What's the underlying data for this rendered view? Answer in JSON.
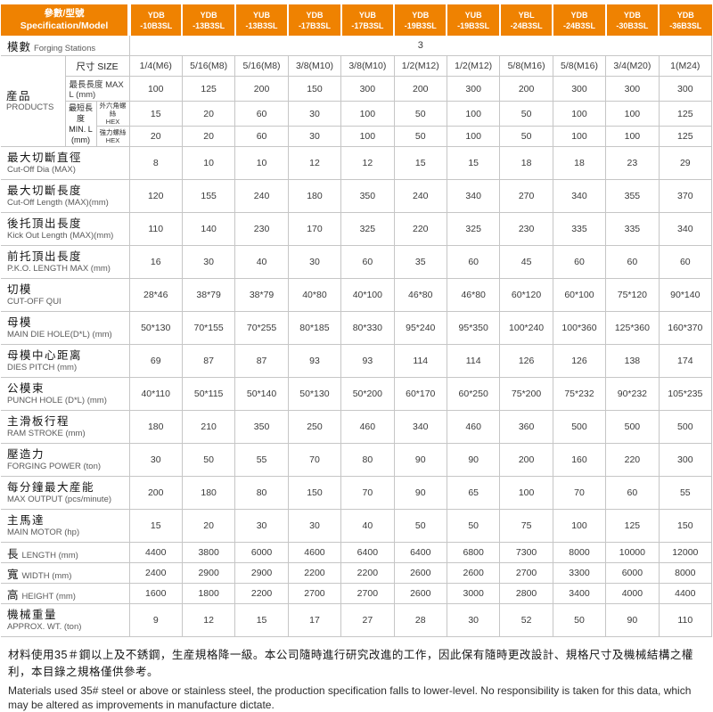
{
  "colors": {
    "accent": "#ef8201",
    "grid": "#c6c6c6",
    "header_text": "#ffffff"
  },
  "header": {
    "spec_zh": "參數/型號",
    "spec_en": "Specification/Model",
    "models": [
      {
        "line1": "YDB",
        "line2": "-10B3SL"
      },
      {
        "line1": "YDB",
        "line2": "-13B3SL"
      },
      {
        "line1": "YUB",
        "line2": "-13B3SL"
      },
      {
        "line1": "YDB",
        "line2": "-17B3SL"
      },
      {
        "line1": "YUB",
        "line2": "-17B3SL"
      },
      {
        "line1": "YDB",
        "line2": "-19B3SL"
      },
      {
        "line1": "YUB",
        "line2": "-19B3SL"
      },
      {
        "line1": "YBL",
        "line2": "-24B3SL"
      },
      {
        "line1": "YDB",
        "line2": "-24B3SL"
      },
      {
        "line1": "YDB",
        "line2": "-30B3SL"
      },
      {
        "line1": "YDB",
        "line2": "-36B3SL"
      }
    ]
  },
  "stations": {
    "zh": "模數",
    "en": "Forging Stations",
    "value": "3"
  },
  "products": {
    "group_zh": "産品",
    "group_en": "PRODUCTS",
    "size_label": "尺寸 SIZE",
    "size_values": [
      "1/4(M6)",
      "5/16(M8)",
      "5/16(M8)",
      "3/8(M10)",
      "3/8(M10)",
      "1/2(M12)",
      "1/2(M12)",
      "5/8(M16)",
      "5/8(M16)",
      "3/4(M20)",
      "1(M24)"
    ],
    "maxl_label": "最長長度 MAX L (mm)",
    "maxl_values": [
      "100",
      "125",
      "200",
      "150",
      "300",
      "200",
      "300",
      "200",
      "300",
      "300",
      "300"
    ],
    "minl_zh": "最短長度",
    "minl_en": "MIN. L",
    "minl_unit": "(mm)",
    "hex1_zh": "外六角螺絲",
    "hex1_en": "HEX",
    "hex1_values": [
      "15",
      "20",
      "60",
      "30",
      "100",
      "50",
      "100",
      "50",
      "100",
      "100",
      "125"
    ],
    "hex2_zh": "強力螺絲",
    "hex2_en": "HEX",
    "hex2_values": [
      "20",
      "20",
      "60",
      "30",
      "100",
      "50",
      "100",
      "50",
      "100",
      "100",
      "125"
    ]
  },
  "rows": [
    {
      "key": "cut-off-dia",
      "zh": "最大切斷直徑",
      "en": "Cut-Off Dia (MAX)",
      "single": false,
      "values": [
        "8",
        "10",
        "10",
        "12",
        "12",
        "15",
        "15",
        "18",
        "18",
        "23",
        "29"
      ]
    },
    {
      "key": "cut-off-length",
      "zh": "最大切斷長度",
      "en": "Cut-Off Length (MAX)(mm)",
      "single": false,
      "values": [
        "120",
        "155",
        "240",
        "180",
        "350",
        "240",
        "340",
        "270",
        "340",
        "355",
        "370"
      ]
    },
    {
      "key": "kick-out-length",
      "zh": "後托頂出長度",
      "en": "Kick Out Length (MAX)(mm)",
      "single": false,
      "values": [
        "110",
        "140",
        "230",
        "170",
        "325",
        "220",
        "325",
        "230",
        "335",
        "335",
        "340"
      ]
    },
    {
      "key": "pko-length",
      "zh": "前托頂出長度",
      "en": "P.K.O. LENGTH MAX (mm)",
      "single": false,
      "values": [
        "16",
        "30",
        "40",
        "30",
        "60",
        "35",
        "60",
        "45",
        "60",
        "60",
        "60"
      ]
    },
    {
      "key": "cut-off-qui",
      "zh": "切模",
      "en": "CUT-OFF QUI",
      "single": false,
      "values": [
        "28*46",
        "38*79",
        "38*79",
        "40*80",
        "40*100",
        "46*80",
        "46*80",
        "60*120",
        "60*100",
        "75*120",
        "90*140"
      ]
    },
    {
      "key": "main-die-hole",
      "zh": "母模",
      "en": "MAIN DIE HOLE(D*L) (mm)",
      "single": false,
      "values": [
        "50*130",
        "70*155",
        "70*255",
        "80*185",
        "80*330",
        "95*240",
        "95*350",
        "100*240",
        "100*360",
        "125*360",
        "160*370"
      ]
    },
    {
      "key": "dies-pitch",
      "zh": "母模中心距离",
      "en": "DIES PITCH (mm)",
      "single": false,
      "values": [
        "69",
        "87",
        "87",
        "93",
        "93",
        "114",
        "114",
        "126",
        "126",
        "138",
        "174"
      ]
    },
    {
      "key": "punch-hole",
      "zh": "公模束",
      "en": "PUNCH HOLE (D*L) (mm)",
      "single": false,
      "values": [
        "40*110",
        "50*115",
        "50*140",
        "50*130",
        "50*200",
        "60*170",
        "60*250",
        "75*200",
        "75*232",
        "90*232",
        "105*235"
      ]
    },
    {
      "key": "ram-stroke",
      "zh": "主滑板行程",
      "en": "RAM STROKE (mm)",
      "single": false,
      "values": [
        "180",
        "210",
        "350",
        "250",
        "460",
        "340",
        "460",
        "360",
        "500",
        "500",
        "500"
      ]
    },
    {
      "key": "forging-power",
      "zh": "壓造力",
      "en": "FORGING POWER (ton)",
      "single": false,
      "values": [
        "30",
        "50",
        "55",
        "70",
        "80",
        "90",
        "90",
        "200",
        "160",
        "220",
        "300"
      ]
    },
    {
      "key": "max-output",
      "zh": "每分鐘最大産能",
      "en": "MAX OUTPUT (pcs/minute)",
      "single": false,
      "values": [
        "200",
        "180",
        "80",
        "150",
        "70",
        "90",
        "65",
        "100",
        "70",
        "60",
        "55"
      ]
    },
    {
      "key": "main-motor",
      "zh": "主馬達",
      "en": "MAIN MOTOR (hp)",
      "single": false,
      "values": [
        "15",
        "20",
        "30",
        "30",
        "40",
        "50",
        "50",
        "75",
        "100",
        "125",
        "150"
      ]
    },
    {
      "key": "length",
      "zh": "長",
      "en": "LENGTH (mm)",
      "single": true,
      "values": [
        "4400",
        "3800",
        "6000",
        "4600",
        "6400",
        "6400",
        "6800",
        "7300",
        "8000",
        "10000",
        "12000"
      ]
    },
    {
      "key": "width",
      "zh": "寬",
      "en": "WIDTH (mm)",
      "single": true,
      "values": [
        "2400",
        "2900",
        "2900",
        "2200",
        "2200",
        "2600",
        "2600",
        "2700",
        "3300",
        "6000",
        "8000"
      ]
    },
    {
      "key": "height",
      "zh": "高",
      "en": "HEIGHT (mm)",
      "single": true,
      "values": [
        "1600",
        "1800",
        "2200",
        "2700",
        "2700",
        "2600",
        "3000",
        "2800",
        "3400",
        "4000",
        "4400"
      ]
    },
    {
      "key": "approx-wt",
      "zh": "機械重量",
      "en": "APPROX. WT. (ton)",
      "single": false,
      "values": [
        "9",
        "12",
        "15",
        "17",
        "27",
        "28",
        "30",
        "52",
        "50",
        "90",
        "110"
      ]
    }
  ],
  "footer": {
    "zh": "材料使用35＃鋼以上及不銹鋼，生産規格降一級。本公司隨時進行研究改進的工作，因此保有隨時更改設計、規格尺寸及機械結構之權利，本目錄之規格僅供參考。",
    "en": "Materials used 35# steel or above or stainless steel, the production specification falls to lower-level. No responsibility is taken for this data, which may be altered as improvements in manufacture dictate."
  }
}
